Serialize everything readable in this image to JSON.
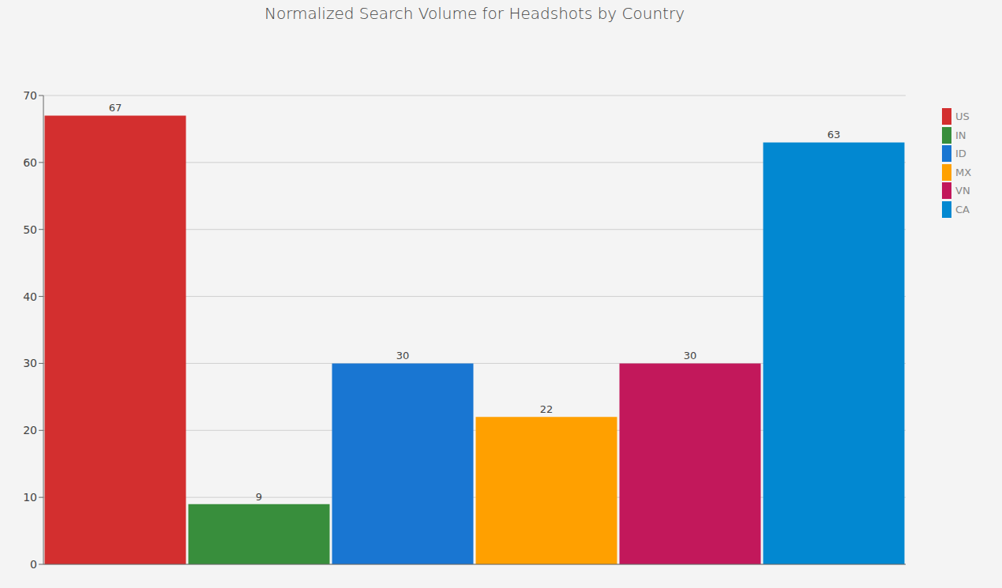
{
  "chart_data": {
    "type": "bar",
    "title": "Normalized Search Volume for Headshots by Country",
    "categories": [
      "US",
      "IN",
      "ID",
      "MX",
      "VN",
      "CA"
    ],
    "values": [
      67,
      9,
      30,
      22,
      30,
      63
    ],
    "colors": [
      "#d32f2f",
      "#388e3c",
      "#1976d2",
      "#ffa000",
      "#c2185b",
      "#0288d1"
    ],
    "ylim": [
      0,
      70
    ],
    "yticks": [
      0,
      10,
      20,
      30,
      40,
      50,
      60,
      70
    ],
    "grid": true,
    "legend": "top right",
    "data_labels": true,
    "tick_labels": "y"
  }
}
